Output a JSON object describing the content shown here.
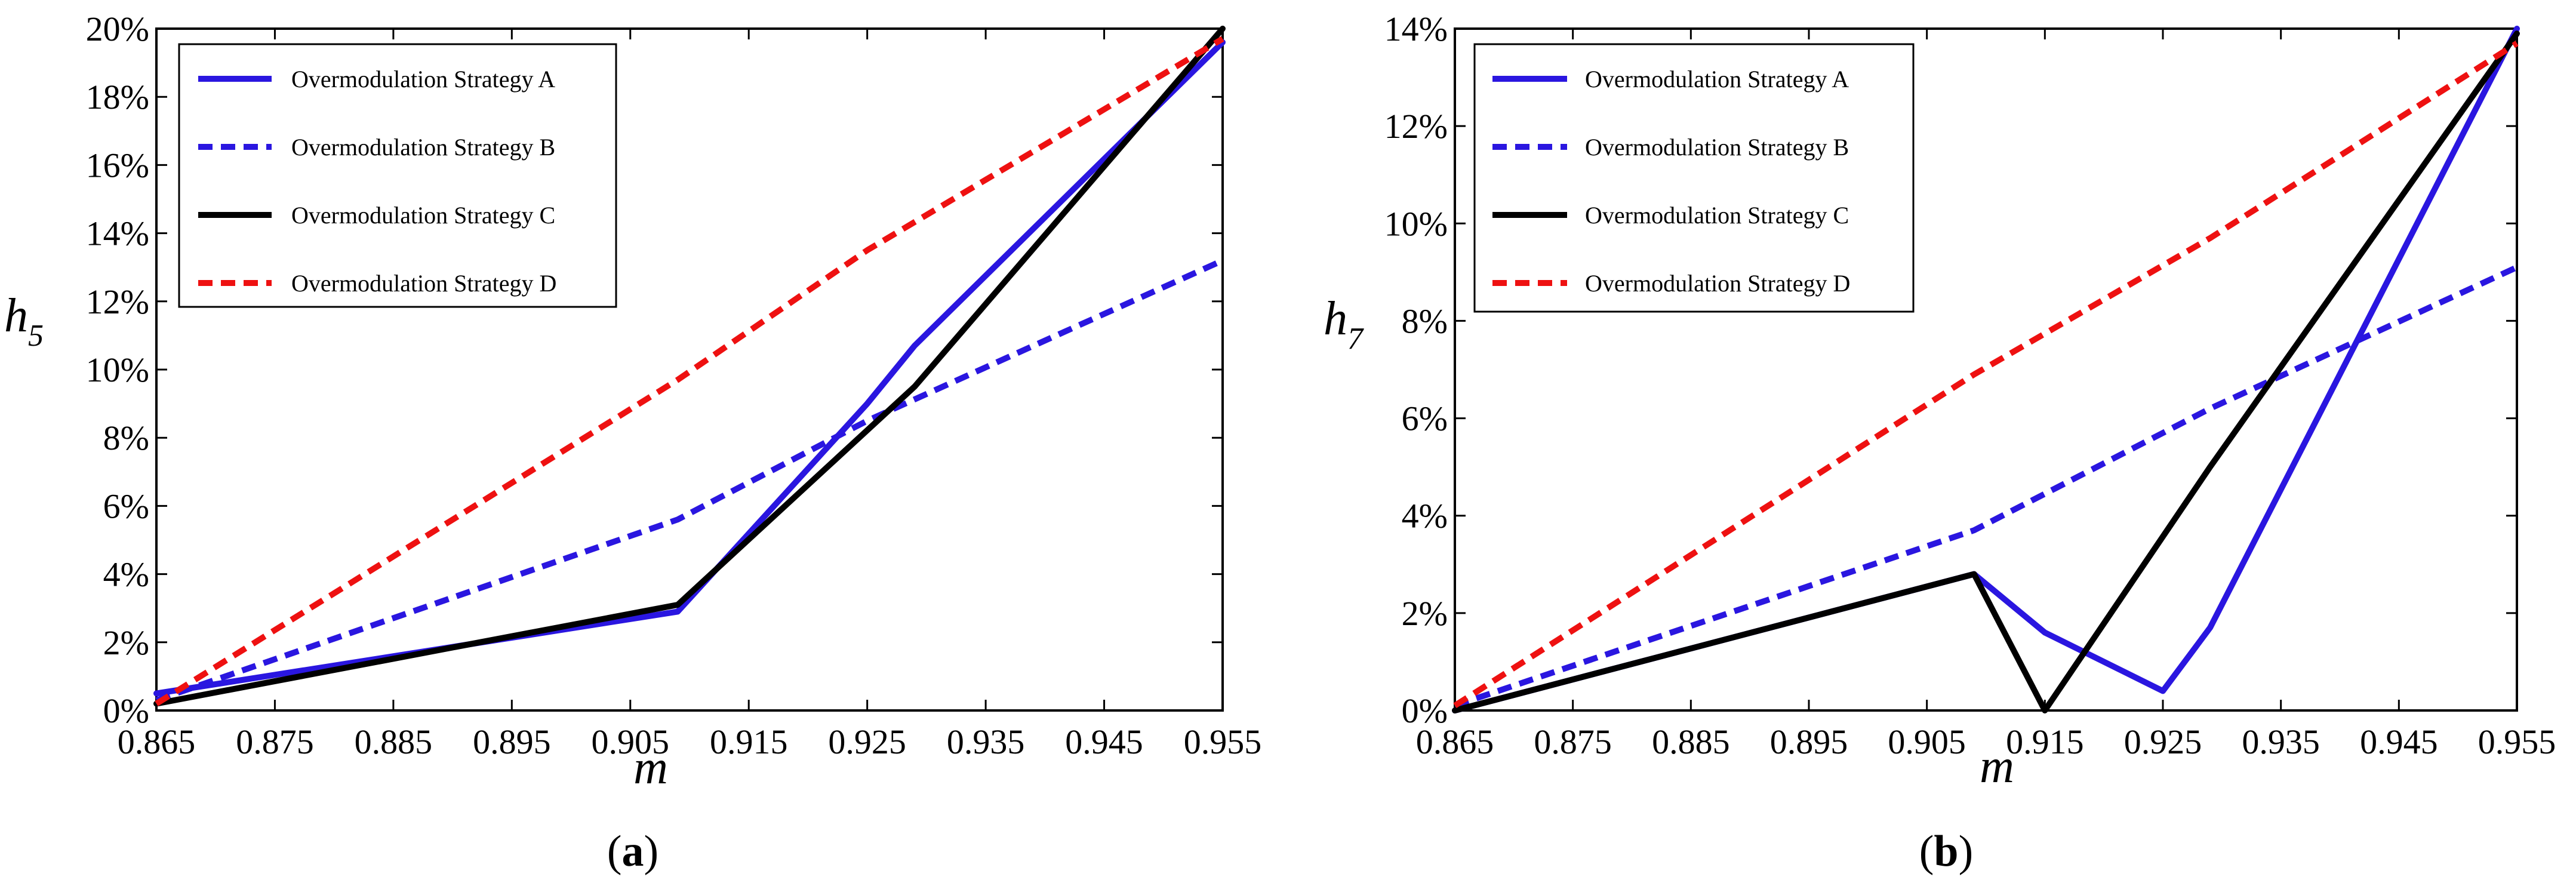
{
  "chart_data": [
    {
      "type": "line",
      "panel_label": "a",
      "ylabel_main": "h",
      "ylabel_sub": "5",
      "xlabel": "m",
      "x_ticks": [
        "0.865",
        "0.875",
        "0.885",
        "0.895",
        "0.905",
        "0.915",
        "0.925",
        "0.935",
        "0.945",
        "0.955"
      ],
      "y_ticks": [
        "0%",
        "2%",
        "4%",
        "6%",
        "8%",
        "10%",
        "12%",
        "14%",
        "16%",
        "18%",
        "20%"
      ],
      "xlim": [
        0.865,
        0.955
      ],
      "ylim": [
        0,
        20
      ],
      "legend_position": "top-left",
      "series": [
        {
          "name": "Overmodulation Strategy A",
          "color": "#2a16e0",
          "dash": "solid",
          "x": [
            0.865,
            0.909,
            0.925,
            0.929,
            0.955
          ],
          "y": [
            0.5,
            2.9,
            9.0,
            10.7,
            19.6
          ]
        },
        {
          "name": "Overmodulation Strategy B",
          "color": "#2a16e0",
          "dash": "dashed",
          "x": [
            0.865,
            0.909,
            0.925,
            0.955
          ],
          "y": [
            0.3,
            5.6,
            8.5,
            13.2
          ]
        },
        {
          "name": "Overmodulation Strategy C",
          "color": "#000000",
          "dash": "solid",
          "x": [
            0.865,
            0.909,
            0.929,
            0.955
          ],
          "y": [
            0.2,
            3.1,
            9.5,
            20.0
          ]
        },
        {
          "name": "Overmodulation Strategy D",
          "color": "#ee1111",
          "dash": "dashed",
          "x": [
            0.865,
            0.909,
            0.925,
            0.955
          ],
          "y": [
            0.2,
            9.7,
            13.5,
            19.7
          ]
        }
      ]
    },
    {
      "type": "line",
      "panel_label": "b",
      "ylabel_main": "h",
      "ylabel_sub": "7",
      "xlabel": "m",
      "x_ticks": [
        "0.865",
        "0.875",
        "0.885",
        "0.895",
        "0.905",
        "0.915",
        "0.925",
        "0.935",
        "0.945",
        "0.955"
      ],
      "y_ticks": [
        "0%",
        "2%",
        "4%",
        "6%",
        "8%",
        "10%",
        "12%",
        "14%"
      ],
      "xlim": [
        0.865,
        0.955
      ],
      "ylim": [
        0,
        14
      ],
      "legend_position": "top-left",
      "series": [
        {
          "name": "Overmodulation Strategy A",
          "color": "#2a16e0",
          "dash": "solid",
          "x": [
            0.865,
            0.909,
            0.915,
            0.925,
            0.929,
            0.955
          ],
          "y": [
            0.0,
            2.8,
            1.6,
            0.4,
            1.7,
            14.0
          ]
        },
        {
          "name": "Overmodulation Strategy B",
          "color": "#2a16e0",
          "dash": "dashed",
          "x": [
            0.865,
            0.909,
            0.929,
            0.955
          ],
          "y": [
            0.1,
            3.7,
            6.2,
            9.1
          ]
        },
        {
          "name": "Overmodulation Strategy C",
          "color": "#000000",
          "dash": "solid",
          "x": [
            0.865,
            0.909,
            0.915,
            0.929,
            0.955
          ],
          "y": [
            0.0,
            2.8,
            0.0,
            5.0,
            13.9
          ]
        },
        {
          "name": "Overmodulation Strategy D",
          "color": "#ee1111",
          "dash": "dashed",
          "x": [
            0.865,
            0.909,
            0.929,
            0.955
          ],
          "y": [
            0.1,
            6.9,
            9.7,
            13.7
          ]
        }
      ]
    }
  ]
}
